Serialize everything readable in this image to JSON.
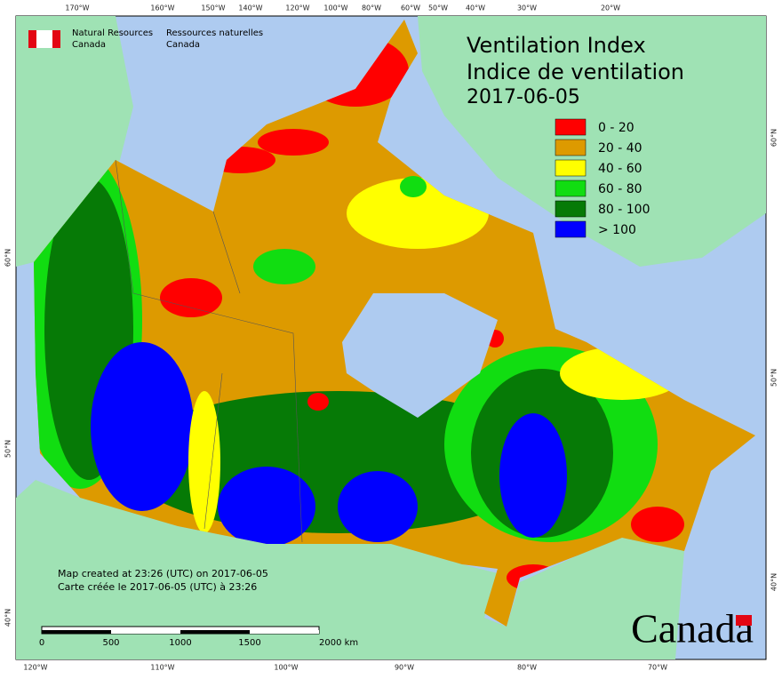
{
  "map": {
    "title": [
      "Ventilation Index",
      "Indice de ventilation",
      "2017-06-05"
    ],
    "legend": [
      {
        "label": "0 - 20",
        "color": "#ff0000"
      },
      {
        "label": "20 - 40",
        "color": "#dd9a00"
      },
      {
        "label": "40 - 60",
        "color": "#ffff00"
      },
      {
        "label": "60 - 80",
        "color": "#11dd11"
      },
      {
        "label": "80 - 100",
        "color": "#067a06"
      },
      {
        "label": "> 100",
        "color": "#0000ff"
      }
    ],
    "agency": {
      "en": [
        "Natural Resources",
        "Canada"
      ],
      "fr": [
        "Ressources naturelles",
        "Canada"
      ]
    },
    "credit": [
      "Map created at 23:26 (UTC) on 2017-06-05",
      "Carte créée le 2017-06-05 (UTC) à 23:26"
    ],
    "scale_bar": [
      "0",
      "500",
      "1000",
      "1500",
      "2000 km"
    ],
    "top_graticule": [
      "170°W",
      "160°W",
      "150°W",
      "140°W",
      "120°W",
      "100°W",
      "80°W",
      "60°W",
      "50°W",
      "40°W",
      "30°W",
      "20°W"
    ],
    "bottom_graticule": [
      "120°W",
      "110°W",
      "100°W",
      "90°W",
      "80°W",
      "70°W"
    ],
    "left_graticule": [
      "60°N",
      "50°N",
      "40°N"
    ],
    "right_graticule": [
      "60°N",
      "50°N",
      "40°N"
    ],
    "wordmark": "Canada"
  }
}
